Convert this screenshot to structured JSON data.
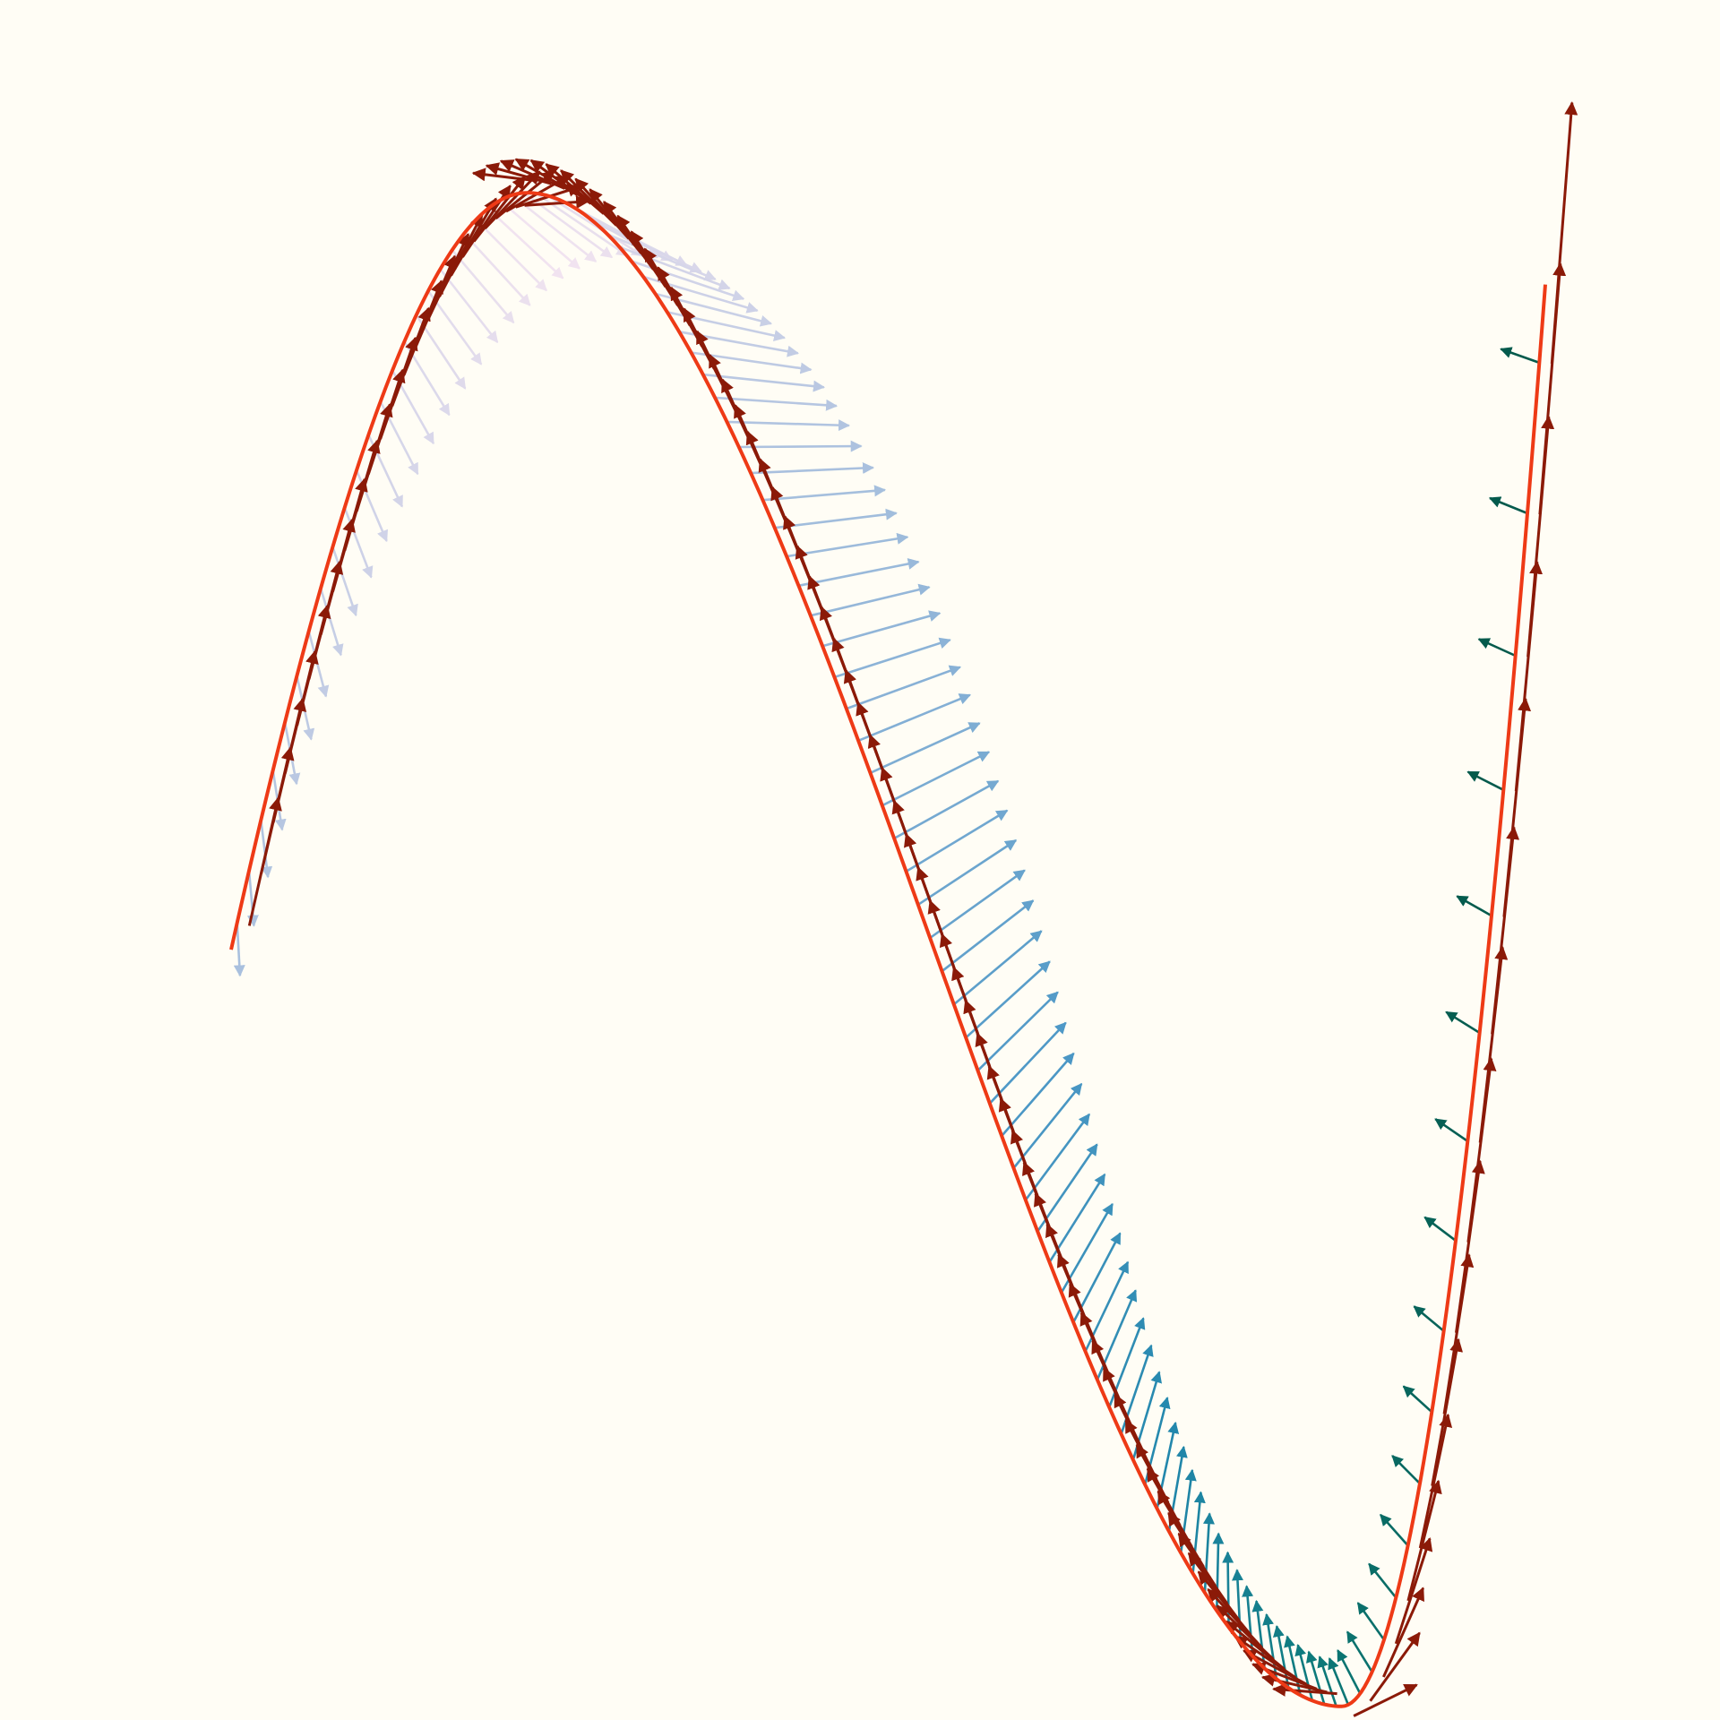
{
  "chart_data": {
    "type": "line",
    "curve": {
      "formula": "cubic",
      "x_start": 0.0,
      "x_end": 1.0,
      "y_at_start": 0.0,
      "y_at_end": 0.58,
      "local_max": {
        "x": 0.225,
        "y": 0.66
      },
      "local_min": {
        "x": 0.845,
        "y": -0.66
      },
      "color": "#ee3a16"
    },
    "tangent_arrows": {
      "count": 110,
      "color": "#8b1a08",
      "direction": "forward-and-back"
    },
    "normal_arrows": {
      "count": 110,
      "colormap": [
        "#f3e4f0",
        "#c8cfe6",
        "#8fb4d8",
        "#4d98c6",
        "#2187ab",
        "#0d7a7a",
        "#045a4c"
      ]
    },
    "axes": {
      "visible": false
    },
    "grid": false,
    "legend": "none"
  }
}
